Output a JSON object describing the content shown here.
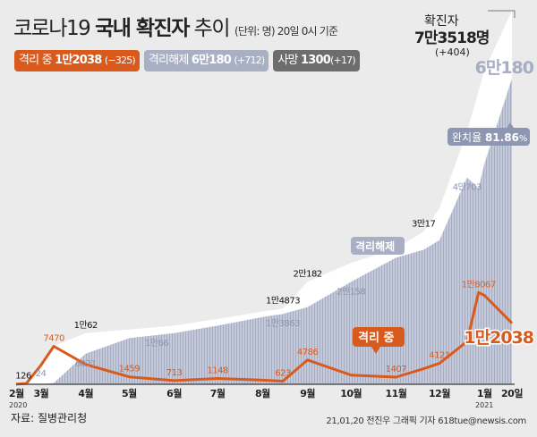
{
  "header": {
    "title_prefix": "코로나19 ",
    "title_bold": "국내 확진자",
    "title_suffix": " 추이",
    "unit_note": "(단위: 명) 20일 0시 기준"
  },
  "legend": [
    {
      "label": "격리 중",
      "value": "1만2038",
      "delta": "(−325)",
      "color": "#d95a1d"
    },
    {
      "label": "격리해제",
      "value": "6만180",
      "delta": "(+712)",
      "color": "#a9b0c4"
    },
    {
      "label": "사망",
      "value": "1300",
      "delta": "(+17)",
      "color": "#6d6d6d"
    }
  ],
  "total": {
    "label": "확진자",
    "value": "7만3518명",
    "delta": "(+404)"
  },
  "callouts": {
    "released_total": "6만180",
    "recovery_rate_label": "완치율",
    "recovery_rate_value": "81.86",
    "recovery_rate_unit": "%",
    "released_area_label": "격리해제",
    "active_line_label": "격리 중",
    "active_latest": "1만2038"
  },
  "chart_data": {
    "type": "area",
    "x_axis": {
      "ticks": [
        {
          "date": "2020-02-13",
          "label": "2월",
          "sub": "2020"
        },
        {
          "date": "2020-03-01",
          "label": "3월"
        },
        {
          "date": "2020-04-01",
          "label": "4월"
        },
        {
          "date": "2020-05-01",
          "label": "5월"
        },
        {
          "date": "2020-06-01",
          "label": "6월"
        },
        {
          "date": "2020-07-01",
          "label": "7월"
        },
        {
          "date": "2020-08-01",
          "label": "8월"
        },
        {
          "date": "2020-09-01",
          "label": "9월"
        },
        {
          "date": "2020-10-01",
          "label": "10월"
        },
        {
          "date": "2020-11-01",
          "label": "11월"
        },
        {
          "date": "2020-12-01",
          "label": "12월"
        },
        {
          "date": "2021-01-01",
          "label": "1월",
          "sub": "2021"
        },
        {
          "date": "2021-01-20",
          "label": "20일"
        }
      ]
    },
    "ylim": [
      0,
      73518
    ],
    "dates": [
      "2020-02-13",
      "2020-02-20",
      "2020-03-01",
      "2020-03-10",
      "2020-04-01",
      "2020-05-01",
      "2020-06-01",
      "2020-07-01",
      "2020-08-01",
      "2020-08-15",
      "2020-09-01",
      "2020-10-01",
      "2020-11-01",
      "2020-11-20",
      "2020-12-01",
      "2020-12-20",
      "2020-12-28",
      "2021-01-01",
      "2021-01-20"
    ],
    "series": [
      {
        "name": "확진자",
        "color": "#ffffff",
        "kind": "area",
        "values": [
          28,
          126,
          3736,
          7513,
          10062,
          10774,
          11541,
          12850,
          14336,
          14873,
          20182,
          23889,
          26732,
          30017,
          34652,
          49665,
          57680,
          61769,
          73518
        ]
      },
      {
        "name": "격리해제",
        "color": "#b4bbcf",
        "kind": "area",
        "values": [
          7,
          16,
          24,
          247,
          6021,
          9072,
          10066,
          11537,
          13233,
          13863,
          15198,
          20158,
          24910,
          26466,
          28352,
          40703,
          38600,
          43400,
          60180
        ]
      },
      {
        "name": "격리 중",
        "color": "#d95a1d",
        "kind": "line",
        "values": [
          21,
          126,
          3689,
          7470,
          3897,
          1459,
          713,
          1148,
          802,
          623,
          4786,
          1806,
          1407,
          3037,
          4121,
          8400,
          18067,
          17500,
          12038
        ]
      }
    ],
    "annotations": [
      {
        "text": "126",
        "date": "2020-02-18",
        "value": 126,
        "series": "확진자"
      },
      {
        "text": "1만62",
        "date": "2020-04-01",
        "value": 10062,
        "series": "확진자"
      },
      {
        "text": "1만4873",
        "date": "2020-08-15",
        "value": 14873,
        "series": "확진자"
      },
      {
        "text": "2만182",
        "date": "2020-09-01",
        "value": 20182,
        "series": "확진자"
      },
      {
        "text": "3만17",
        "date": "2020-11-20",
        "value": 30017,
        "series": "확진자"
      },
      {
        "text": "24",
        "date": "2020-03-01",
        "value": 24,
        "series": "격리해제"
      },
      {
        "text": "6021",
        "date": "2020-04-01",
        "value": 6021,
        "series": "격리해제"
      },
      {
        "text": "1만66",
        "date": "2020-05-20",
        "value": 10066,
        "series": "격리해제"
      },
      {
        "text": "1만3863",
        "date": "2020-08-15",
        "value": 13863,
        "series": "격리해제"
      },
      {
        "text": "2만158",
        "date": "2020-10-01",
        "value": 20158,
        "series": "격리해제"
      },
      {
        "text": "4만703",
        "date": "2020-12-20",
        "value": 40703,
        "series": "격리해제"
      },
      {
        "text": "7470",
        "date": "2020-03-10",
        "value": 7470,
        "series": "격리 중"
      },
      {
        "text": "1459",
        "date": "2020-05-01",
        "value": 1459,
        "series": "격리 중"
      },
      {
        "text": "713",
        "date": "2020-06-01",
        "value": 713,
        "series": "격리 중"
      },
      {
        "text": "1148",
        "date": "2020-07-01",
        "value": 1148,
        "series": "격리 중"
      },
      {
        "text": "623",
        "date": "2020-08-15",
        "value": 623,
        "series": "격리 중"
      },
      {
        "text": "4786",
        "date": "2020-09-01",
        "value": 4786,
        "series": "격리 중"
      },
      {
        "text": "1407",
        "date": "2020-11-01",
        "value": 1407,
        "series": "격리 중"
      },
      {
        "text": "4121",
        "date": "2020-12-01",
        "value": 4121,
        "series": "격리 중"
      },
      {
        "text": "1만8067",
        "date": "2020-12-28",
        "value": 18067,
        "series": "격리 중"
      }
    ]
  },
  "footer": {
    "source": "자료: 질병관리청",
    "credit": "21,01,20 전진우 그래픽 기자 618tue@newsis.com",
    "watermark": "NEWSIS"
  }
}
